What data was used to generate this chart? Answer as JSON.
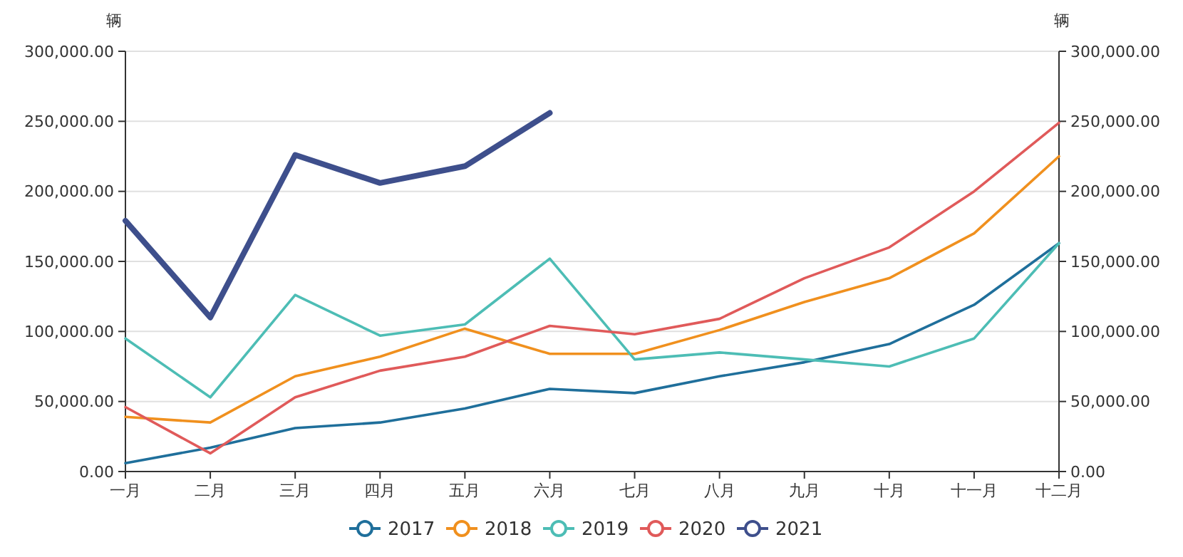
{
  "chart_data": {
    "type": "line",
    "ylabel": "辆",
    "y2label": "辆",
    "categories": [
      "一月",
      "二月",
      "三月",
      "四月",
      "五月",
      "六月",
      "七月",
      "八月",
      "九月",
      "十月",
      "十一月",
      "十二月"
    ],
    "series": [
      {
        "name": "2017",
        "color": "#1f6f9b",
        "values": [
          6000,
          17000,
          31000,
          35000,
          45000,
          59000,
          56000,
          68000,
          78000,
          91000,
          119000,
          163000
        ]
      },
      {
        "name": "2018",
        "color": "#f0901e",
        "values": [
          39000,
          35000,
          68000,
          82000,
          102000,
          84000,
          84000,
          101000,
          121000,
          138000,
          170000,
          225000
        ]
      },
      {
        "name": "2019",
        "color": "#4dbdb5",
        "values": [
          95000,
          53000,
          126000,
          97000,
          105000,
          152000,
          80000,
          85000,
          80000,
          75000,
          95000,
          163000
        ]
      },
      {
        "name": "2020",
        "color": "#e05a5a",
        "values": [
          46000,
          13000,
          53000,
          72000,
          82000,
          104000,
          98000,
          109000,
          138000,
          160000,
          200000,
          249000
        ]
      },
      {
        "name": "2021",
        "color": "#3e4f8c",
        "values": [
          179000,
          110000,
          226000,
          206000,
          218000,
          256000,
          null,
          null,
          null,
          null,
          null,
          null
        ]
      }
    ],
    "ylim": [
      0,
      300000
    ],
    "yticks": [
      {
        "value": 0,
        "label": "0.00"
      },
      {
        "value": 50000,
        "label": "50,000.00"
      },
      {
        "value": 100000,
        "label": "100,000.00"
      },
      {
        "value": 150000,
        "label": "150,000.00"
      },
      {
        "value": 200000,
        "label": "200,000.00"
      },
      {
        "value": 250000,
        "label": "250,000.00"
      },
      {
        "value": 300000,
        "label": "300,000.00"
      }
    ],
    "y2lim": [
      0,
      300000
    ],
    "y2ticks": [
      {
        "value": 0,
        "label": "0.00"
      },
      {
        "value": 50000,
        "label": "50,000.00"
      },
      {
        "value": 100000,
        "label": "100,000.00"
      },
      {
        "value": 150000,
        "label": "150,000.00"
      },
      {
        "value": 200000,
        "label": "200,000.00"
      },
      {
        "value": 250000,
        "label": "250,000.00"
      },
      {
        "value": 300000,
        "label": "300,000.00"
      }
    ],
    "grid": "y",
    "legend": "bottom"
  }
}
